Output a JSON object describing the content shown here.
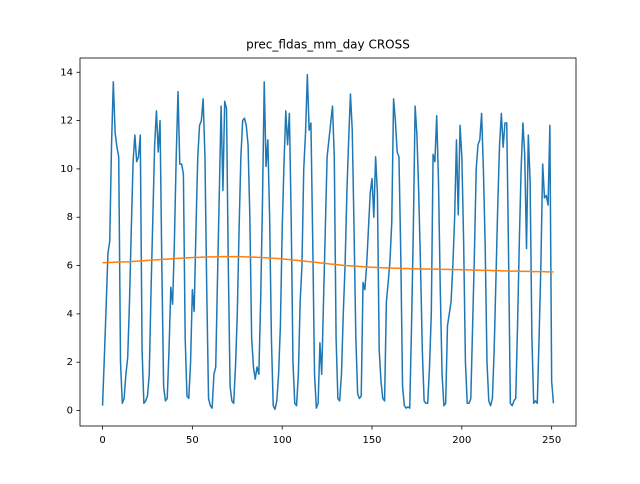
{
  "chart_data": {
    "type": "line",
    "title": "prec_fldas_mm_day CROSS",
    "x": [
      0,
      1,
      2,
      3,
      4,
      5,
      6,
      7,
      8,
      9,
      10,
      11,
      12,
      13,
      14,
      15,
      16,
      17,
      18,
      19,
      20,
      21,
      22,
      23,
      24,
      25,
      26,
      27,
      28,
      29,
      30,
      31,
      32,
      33,
      34,
      35,
      36,
      37,
      38,
      39,
      40,
      41,
      42,
      43,
      44,
      45,
      46,
      47,
      48,
      49,
      50,
      51,
      52,
      53,
      54,
      55,
      56,
      57,
      58,
      59,
      60,
      61,
      62,
      63,
      64,
      65,
      66,
      67,
      68,
      69,
      70,
      71,
      72,
      73,
      74,
      75,
      76,
      77,
      78,
      79,
      80,
      81,
      82,
      83,
      84,
      85,
      86,
      87,
      88,
      89,
      90,
      91,
      92,
      93,
      94,
      95,
      96,
      97,
      98,
      99,
      100,
      101,
      102,
      103,
      104,
      105,
      106,
      107,
      108,
      109,
      110,
      111,
      112,
      113,
      114,
      115,
      116,
      117,
      118,
      119,
      120,
      121,
      122,
      123,
      124,
      125,
      126,
      127,
      128,
      129,
      130,
      131,
      132,
      133,
      134,
      135,
      136,
      137,
      138,
      139,
      140,
      141,
      142,
      143,
      144,
      145,
      146,
      147,
      148,
      149,
      150,
      151,
      152,
      153,
      154,
      155,
      156,
      157,
      158,
      159,
      160,
      161,
      162,
      163,
      164,
      165,
      166,
      167,
      168,
      169,
      170,
      171,
      172,
      173,
      174,
      175,
      176,
      177,
      178,
      179,
      180,
      181,
      182,
      183,
      184,
      185,
      186,
      187,
      188,
      189,
      190,
      191,
      192,
      193,
      194,
      195,
      196,
      197,
      198,
      199,
      200,
      201,
      202,
      203,
      204,
      205,
      206,
      207,
      208,
      209,
      210,
      211,
      212,
      213,
      214,
      215,
      216,
      217,
      218,
      219,
      220,
      221,
      222,
      223,
      224,
      225,
      226,
      227,
      228,
      229,
      230,
      231,
      232,
      233,
      234,
      235,
      236,
      237,
      238,
      239,
      240,
      241,
      242,
      243,
      244,
      245,
      246,
      247,
      248,
      249,
      250,
      251
    ],
    "series": [
      {
        "color": "#1f77b4",
        "values": [
          0.2,
          2.2,
          4.3,
          6.5,
          7.0,
          11.0,
          13.6,
          11.5,
          10.9,
          10.5,
          2.0,
          0.3,
          0.5,
          1.5,
          2.2,
          4.5,
          7.5,
          10.3,
          11.4,
          10.3,
          10.5,
          11.4,
          2.5,
          0.3,
          0.4,
          0.6,
          1.5,
          5.0,
          8.0,
          11.0,
          12.4,
          10.7,
          12.0,
          6.0,
          1.0,
          0.4,
          0.5,
          2.5,
          5.1,
          4.4,
          7.0,
          10.5,
          13.2,
          10.2,
          10.2,
          9.8,
          3.0,
          0.6,
          0.5,
          2.0,
          5.0,
          4.1,
          7.5,
          10.5,
          11.8,
          12.0,
          12.9,
          10.5,
          5.0,
          0.5,
          0.2,
          0.1,
          1.5,
          1.8,
          5.5,
          9.0,
          12.6,
          9.1,
          12.8,
          12.5,
          6.0,
          1.0,
          0.4,
          0.3,
          1.8,
          4.0,
          7.5,
          10.5,
          12.0,
          12.1,
          11.8,
          11.0,
          8.0,
          3.0,
          1.8,
          1.3,
          1.8,
          1.5,
          4.5,
          8.5,
          13.6,
          10.1,
          11.2,
          8.0,
          3.0,
          0.2,
          0.05,
          0.4,
          1.5,
          3.5,
          7.5,
          10.2,
          12.4,
          11.0,
          12.3,
          8.0,
          2.0,
          0.3,
          0.2,
          1.5,
          4.5,
          6.0,
          10.0,
          11.5,
          13.9,
          11.6,
          11.9,
          7.0,
          1.5,
          0.1,
          0.3,
          2.8,
          1.5,
          4.5,
          7.5,
          10.5,
          11.2,
          11.9,
          12.6,
          10.5,
          3.0,
          0.5,
          0.4,
          1.5,
          4.0,
          6.0,
          9.0,
          11.2,
          13.1,
          11.6,
          7.5,
          3.0,
          0.7,
          0.5,
          0.6,
          5.3,
          5.0,
          6.0,
          7.5,
          9.0,
          9.6,
          8.0,
          10.5,
          9.0,
          2.5,
          1.2,
          0.5,
          0.4,
          4.5,
          5.3,
          6.2,
          7.8,
          12.9,
          12.0,
          10.7,
          10.5,
          6.5,
          1.0,
          0.2,
          0.1,
          0.15,
          0.1,
          3.5,
          7.5,
          12.6,
          11.4,
          9.0,
          6.0,
          2.5,
          0.4,
          0.3,
          0.3,
          1.8,
          4.0,
          10.6,
          10.3,
          12.2,
          9.5,
          5.0,
          1.5,
          0.2,
          0.3,
          3.5,
          4.0,
          4.5,
          6.0,
          8.0,
          11.2,
          8.1,
          11.8,
          10.5,
          7.0,
          2.0,
          0.3,
          0.3,
          0.5,
          3.5,
          6.5,
          10.0,
          11.0,
          11.2,
          12.3,
          10.0,
          6.8,
          2.0,
          0.4,
          0.2,
          0.5,
          2.5,
          5.5,
          8.5,
          11.0,
          12.3,
          10.9,
          11.9,
          11.9,
          6.5,
          0.3,
          0.2,
          0.4,
          0.5,
          3.5,
          7.0,
          10.0,
          11.9,
          10.6,
          6.7,
          11.4,
          9.5,
          3.0,
          0.3,
          0.4,
          0.3,
          3.0,
          6.0,
          10.2,
          8.8,
          8.9,
          8.5,
          11.8,
          1.2,
          0.3
        ]
      },
      {
        "color": "#ff7f0e",
        "values": [
          6.12,
          6.12,
          6.12,
          6.13,
          6.13,
          6.13,
          6.13,
          6.14,
          6.14,
          6.14,
          6.14,
          6.15,
          6.15,
          6.15,
          6.16,
          6.16,
          6.17,
          6.17,
          6.18,
          6.18,
          6.19,
          6.19,
          6.2,
          6.2,
          6.21,
          6.21,
          6.22,
          6.22,
          6.23,
          6.23,
          6.24,
          6.24,
          6.25,
          6.25,
          6.26,
          6.26,
          6.27,
          6.27,
          6.28,
          6.28,
          6.29,
          6.29,
          6.3,
          6.3,
          6.31,
          6.31,
          6.32,
          6.32,
          6.33,
          6.33,
          6.33,
          6.34,
          6.34,
          6.34,
          6.34,
          6.35,
          6.35,
          6.35,
          6.35,
          6.36,
          6.36,
          6.36,
          6.36,
          6.36,
          6.37,
          6.37,
          6.37,
          6.37,
          6.37,
          6.37,
          6.37,
          6.37,
          6.37,
          6.37,
          6.37,
          6.37,
          6.37,
          6.37,
          6.36,
          6.36,
          6.36,
          6.36,
          6.36,
          6.35,
          6.35,
          6.35,
          6.34,
          6.34,
          6.34,
          6.33,
          6.33,
          6.32,
          6.32,
          6.31,
          6.31,
          6.3,
          6.3,
          6.29,
          6.29,
          6.28,
          6.27,
          6.27,
          6.26,
          6.25,
          6.25,
          6.24,
          6.23,
          6.22,
          6.22,
          6.21,
          6.2,
          6.19,
          6.19,
          6.18,
          6.17,
          6.16,
          6.15,
          6.15,
          6.14,
          6.13,
          6.12,
          6.11,
          6.1,
          6.1,
          6.09,
          6.08,
          6.07,
          6.06,
          6.06,
          6.05,
          6.04,
          6.03,
          6.03,
          6.02,
          6.01,
          6.01,
          6.0,
          5.99,
          5.99,
          5.98,
          5.98,
          5.97,
          5.97,
          5.96,
          5.96,
          5.95,
          5.95,
          5.94,
          5.94,
          5.93,
          5.93,
          5.93,
          5.92,
          5.92,
          5.92,
          5.91,
          5.91,
          5.91,
          5.9,
          5.9,
          5.9,
          5.9,
          5.89,
          5.89,
          5.89,
          5.89,
          5.88,
          5.88,
          5.88,
          5.88,
          5.88,
          5.87,
          5.87,
          5.87,
          5.87,
          5.87,
          5.86,
          5.86,
          5.86,
          5.86,
          5.86,
          5.86,
          5.85,
          5.85,
          5.85,
          5.85,
          5.85,
          5.85,
          5.84,
          5.84,
          5.84,
          5.84,
          5.84,
          5.84,
          5.83,
          5.83,
          5.83,
          5.83,
          5.83,
          5.83,
          5.82,
          5.82,
          5.82,
          5.82,
          5.82,
          5.82,
          5.81,
          5.81,
          5.81,
          5.81,
          5.81,
          5.8,
          5.8,
          5.8,
          5.8,
          5.8,
          5.8,
          5.79,
          5.79,
          5.79,
          5.79,
          5.79,
          5.78,
          5.78,
          5.78,
          5.78,
          5.78,
          5.77,
          5.77,
          5.77,
          5.77,
          5.77,
          5.77,
          5.76,
          5.76,
          5.76,
          5.76,
          5.76,
          5.76,
          5.75,
          5.75,
          5.75,
          5.75,
          5.75,
          5.75,
          5.75,
          5.75,
          5.74,
          5.74,
          5.74,
          5.74,
          5.74
        ]
      }
    ],
    "xlim": [
      -12.55,
      263.55
    ],
    "xticks": [
      0,
      50,
      100,
      150,
      200,
      250
    ],
    "ylim": [
      -0.64,
      14.59
    ],
    "yticks": [
      0,
      2,
      4,
      6,
      8,
      10,
      12,
      14
    ]
  }
}
